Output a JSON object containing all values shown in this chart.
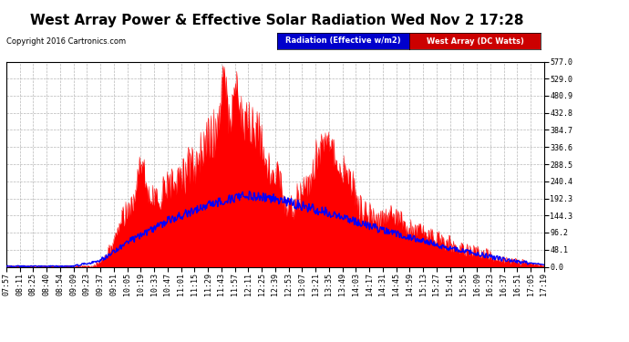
{
  "title": "West Array Power & Effective Solar Radiation Wed Nov 2 17:28",
  "copyright": "Copyright 2016 Cartronics.com",
  "legend_radiation": "Radiation (Effective w/m2)",
  "legend_west": "West Array (DC Watts)",
  "legend_radiation_bg": "#0000cc",
  "legend_west_bg": "#cc0000",
  "y_tick_labels": [
    "0.0",
    "48.1",
    "96.2",
    "144.3",
    "192.3",
    "240.4",
    "288.5",
    "336.6",
    "384.7",
    "432.8",
    "480.9",
    "529.0",
    "577.0"
  ],
  "y_tick_values": [
    0.0,
    48.1,
    96.2,
    144.3,
    192.3,
    240.4,
    288.5,
    336.6,
    384.7,
    432.8,
    480.9,
    529.0,
    577.0
  ],
  "ylim": [
    0.0,
    577.0
  ],
  "x_tick_labels": [
    "07:57",
    "08:11",
    "08:25",
    "08:40",
    "08:54",
    "09:09",
    "09:23",
    "09:37",
    "09:51",
    "10:05",
    "10:19",
    "10:33",
    "10:47",
    "11:01",
    "11:15",
    "11:29",
    "11:43",
    "11:57",
    "12:11",
    "12:25",
    "12:39",
    "12:53",
    "13:07",
    "13:21",
    "13:35",
    "13:49",
    "14:03",
    "14:17",
    "14:31",
    "14:45",
    "14:59",
    "15:13",
    "15:27",
    "15:41",
    "15:55",
    "16:09",
    "16:23",
    "16:37",
    "16:51",
    "17:05",
    "17:19"
  ],
  "plot_bg_color": "#ffffff",
  "fill_color": "#ff0000",
  "line_color": "#0000ff",
  "grid_color": "#b0b0b0",
  "title_fontsize": 11,
  "tick_fontsize": 6,
  "copyright_fontsize": 6
}
